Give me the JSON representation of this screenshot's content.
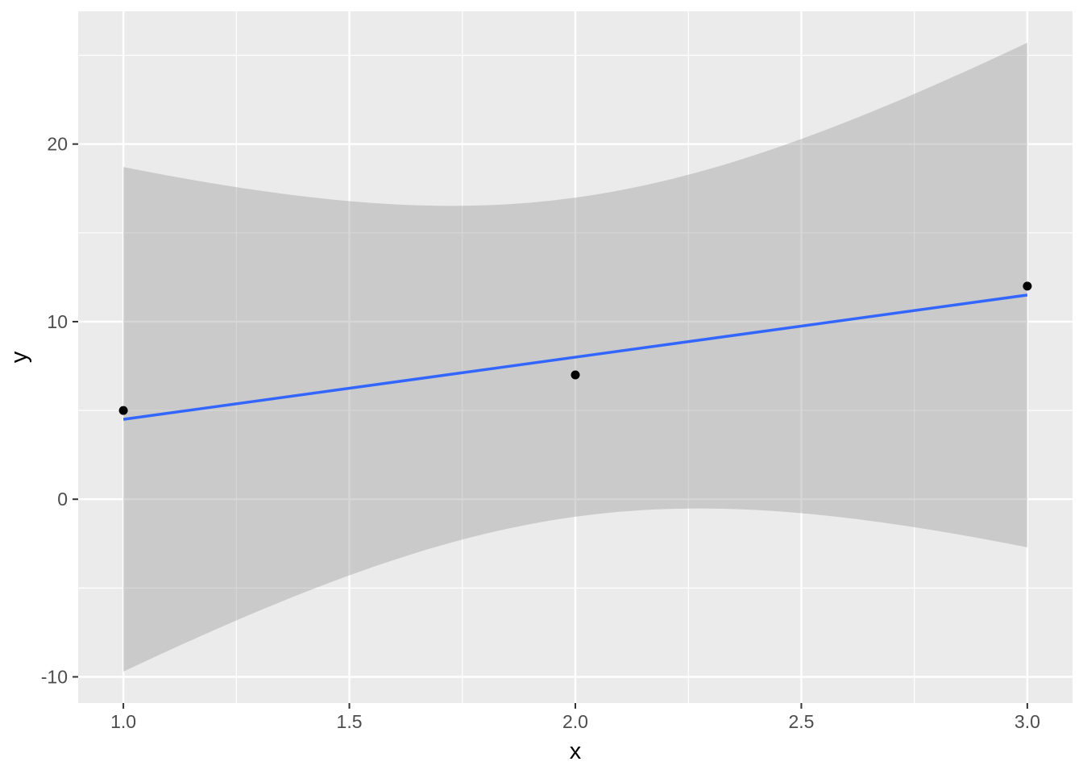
{
  "chart_data": {
    "type": "scatter",
    "title": "",
    "xlabel": "x",
    "ylabel": "y",
    "points": [
      {
        "x": 1,
        "y": 5
      },
      {
        "x": 2,
        "y": 7
      },
      {
        "x": 3,
        "y": 12
      }
    ],
    "smooth": {
      "method": "lm",
      "intercept": 1,
      "slope": 3.5,
      "x_from": 1,
      "x_to": 3
    },
    "ci": {
      "level": 0.95,
      "t": 12.7062,
      "s": 1.224745,
      "n": 3,
      "x_mean": 2,
      "sxx": 2
    },
    "xlim": [
      0.9,
      3.1
    ],
    "ylim": [
      -11.476,
      27.476
    ],
    "x_ticks": [
      1.0,
      1.5,
      2.0,
      2.5,
      3.0
    ],
    "x_tick_labels": [
      "1.0",
      "1.5",
      "2.0",
      "2.5",
      "3.0"
    ],
    "y_ticks": [
      -10,
      0,
      10,
      20
    ],
    "y_tick_labels": [
      "-10",
      "0",
      "10",
      "20"
    ],
    "x_minor_breaks": [
      1.25,
      1.75,
      2.25,
      2.75
    ],
    "y_minor_breaks": [
      -5,
      5,
      15,
      25
    ],
    "grid": "on",
    "legend": "none",
    "colors": {
      "outer_background": "#FFFFFF",
      "panel_background": "#EBEBEB",
      "grid_line": "#FFFFFF",
      "ribbon_fill": "rgba(153,153,153,0.4)",
      "smooth_line": "#3366FF",
      "point": "#000000",
      "tick_label": "#4D4D4D",
      "tick_mark": "#333333",
      "axis_title": "#000000"
    }
  }
}
